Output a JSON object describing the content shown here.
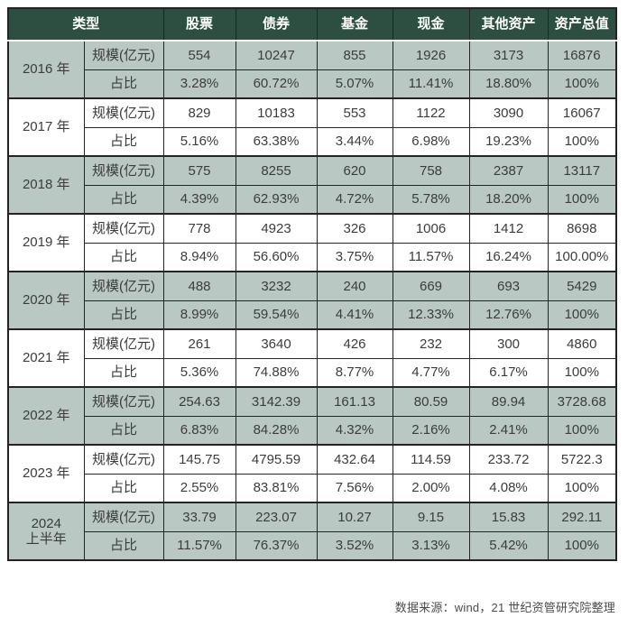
{
  "chart_data": {
    "type": "table",
    "header": [
      "类型",
      "股票",
      "债券",
      "基金",
      "现金",
      "其他资产",
      "资产总值"
    ],
    "row_types": {
      "scale": "规模(亿元)",
      "share": "占比"
    },
    "years": [
      {
        "label": [
          "2016 年"
        ],
        "scale": [
          "554",
          "10247",
          "855",
          "1926",
          "3173",
          "16876"
        ],
        "share": [
          "3.28%",
          "60.72%",
          "5.07%",
          "11.41%",
          "18.80%",
          "100%"
        ]
      },
      {
        "label": [
          "2017 年"
        ],
        "scale": [
          "829",
          "10183",
          "553",
          "1122",
          "3090",
          "16067"
        ],
        "share": [
          "5.16%",
          "63.38%",
          "3.44%",
          "6.98%",
          "19.23%",
          "100%"
        ]
      },
      {
        "label": [
          "2018 年"
        ],
        "scale": [
          "575",
          "8255",
          "620",
          "758",
          "2387",
          "13117"
        ],
        "share": [
          "4.39%",
          "62.93%",
          "4.72%",
          "5.78%",
          "18.20%",
          "100%"
        ]
      },
      {
        "label": [
          "2019 年"
        ],
        "scale": [
          "778",
          "4923",
          "326",
          "1006",
          "1412",
          "8698"
        ],
        "share": [
          "8.94%",
          "56.60%",
          "3.75%",
          "11.57%",
          "16.24%",
          "100.00%"
        ]
      },
      {
        "label": [
          "2020 年"
        ],
        "scale": [
          "488",
          "3232",
          "240",
          "669",
          "693",
          "5429"
        ],
        "share": [
          "8.99%",
          "59.54%",
          "4.41%",
          "12.33%",
          "12.76%",
          "100%"
        ]
      },
      {
        "label": [
          "2021 年"
        ],
        "scale": [
          "261",
          "3640",
          "426",
          "232",
          "300",
          "4860"
        ],
        "share": [
          "5.36%",
          "74.88%",
          "8.77%",
          "4.77%",
          "6.17%",
          "100%"
        ]
      },
      {
        "label": [
          "2022 年"
        ],
        "scale": [
          "254.63",
          "3142.39",
          "161.13",
          "80.59",
          "89.94",
          "3728.68"
        ],
        "share": [
          "6.83%",
          "84.28%",
          "4.32%",
          "2.16%",
          "2.41%",
          "100%"
        ]
      },
      {
        "label": [
          "2023 年"
        ],
        "scale": [
          "145.75",
          "4795.59",
          "432.64",
          "114.59",
          "233.72",
          "5722.3"
        ],
        "share": [
          "2.55%",
          "83.81%",
          "7.56%",
          "2.00%",
          "4.08%",
          "100%"
        ]
      },
      {
        "label": [
          "2024",
          "上半年"
        ],
        "scale": [
          "33.79",
          "223.07",
          "10.27",
          "9.15",
          "15.83",
          "292.11"
        ],
        "share": [
          "11.57%",
          "76.37%",
          "3.52%",
          "3.13%",
          "5.42%",
          "100%"
        ]
      }
    ]
  },
  "footer": {
    "source_note": "数据来源：wind，21 世纪资管研究院整理"
  },
  "colors": {
    "header_bg": "#2d4f41",
    "header_text": "#ffffff",
    "band_bg": "#b9c8c2",
    "border": "#242424",
    "body_text": "#3c3c3c",
    "source_text": "#4b4b4b"
  }
}
